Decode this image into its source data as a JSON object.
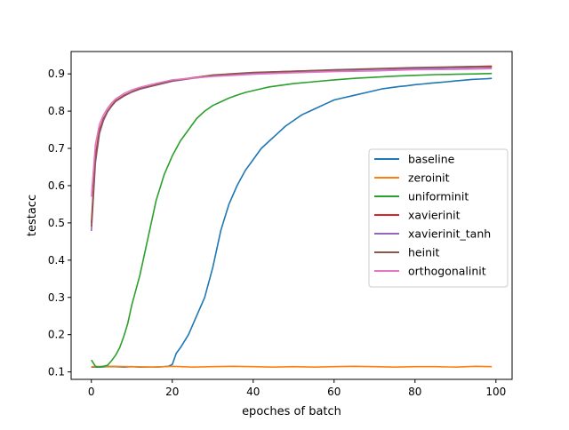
{
  "chart_data": {
    "type": "line",
    "title": "",
    "xlabel": "epoches of batch",
    "ylabel": "testacc",
    "xlim": [
      -5,
      104
    ],
    "ylim": [
      0.08,
      0.96
    ],
    "xticks": [
      0,
      20,
      40,
      60,
      80,
      100
    ],
    "yticks": [
      0.1,
      0.2,
      0.3,
      0.4,
      0.5,
      0.6,
      0.7,
      0.8,
      0.9
    ],
    "grid": false,
    "legend_position": "center-right",
    "series": [
      {
        "name": "baseline",
        "color": "#1f77b4",
        "x": [
          0,
          2,
          4,
          6,
          8,
          10,
          12,
          14,
          16,
          18,
          19,
          20,
          21,
          22,
          24,
          26,
          28,
          30,
          32,
          34,
          36,
          38,
          40,
          42,
          44,
          46,
          48,
          50,
          52,
          54,
          56,
          58,
          60,
          62,
          64,
          66,
          68,
          70,
          72,
          74,
          76,
          78,
          80,
          82,
          84,
          86,
          88,
          90,
          92,
          94,
          96,
          98,
          99
        ],
        "y": [
          0.113,
          0.113,
          0.114,
          0.114,
          0.113,
          0.114,
          0.113,
          0.113,
          0.113,
          0.114,
          0.115,
          0.12,
          0.15,
          0.165,
          0.2,
          0.25,
          0.3,
          0.38,
          0.48,
          0.55,
          0.6,
          0.64,
          0.67,
          0.7,
          0.72,
          0.74,
          0.76,
          0.775,
          0.79,
          0.8,
          0.81,
          0.82,
          0.83,
          0.835,
          0.84,
          0.845,
          0.85,
          0.855,
          0.86,
          0.863,
          0.866,
          0.868,
          0.871,
          0.873,
          0.875,
          0.877,
          0.879,
          0.881,
          0.883,
          0.885,
          0.886,
          0.887,
          0.888
        ]
      },
      {
        "name": "zeroinit",
        "color": "#ff7f0e",
        "x": [
          0,
          5,
          10,
          15,
          20,
          25,
          30,
          35,
          40,
          45,
          50,
          55,
          60,
          65,
          70,
          75,
          80,
          85,
          90,
          95,
          99
        ],
        "y": [
          0.114,
          0.115,
          0.114,
          0.113,
          0.115,
          0.113,
          0.114,
          0.115,
          0.114,
          0.113,
          0.114,
          0.113,
          0.114,
          0.115,
          0.114,
          0.113,
          0.114,
          0.114,
          0.113,
          0.115,
          0.114
        ]
      },
      {
        "name": "uniforminit",
        "color": "#2ca02c",
        "x": [
          0,
          1,
          2,
          3,
          4,
          5,
          6,
          7,
          8,
          9,
          10,
          12,
          14,
          16,
          18,
          20,
          22,
          24,
          26,
          28,
          30,
          32,
          34,
          36,
          38,
          40,
          42,
          44,
          46,
          48,
          50,
          55,
          60,
          65,
          70,
          75,
          80,
          85,
          90,
          95,
          99
        ],
        "y": [
          0.132,
          0.115,
          0.113,
          0.115,
          0.118,
          0.13,
          0.145,
          0.165,
          0.195,
          0.23,
          0.28,
          0.36,
          0.46,
          0.56,
          0.63,
          0.68,
          0.72,
          0.75,
          0.78,
          0.8,
          0.815,
          0.825,
          0.835,
          0.843,
          0.85,
          0.855,
          0.86,
          0.865,
          0.868,
          0.871,
          0.874,
          0.879,
          0.884,
          0.888,
          0.891,
          0.894,
          0.896,
          0.898,
          0.899,
          0.9,
          0.901
        ]
      },
      {
        "name": "xavierinit",
        "color": "#d62728",
        "x": [
          0,
          1,
          2,
          3,
          4,
          5,
          6,
          8,
          10,
          12,
          15,
          20,
          25,
          30,
          40,
          50,
          60,
          70,
          80,
          90,
          95,
          99
        ],
        "y": [
          0.5,
          0.68,
          0.75,
          0.78,
          0.8,
          0.815,
          0.828,
          0.842,
          0.852,
          0.86,
          0.868,
          0.882,
          0.89,
          0.896,
          0.903,
          0.907,
          0.91,
          0.913,
          0.916,
          0.918,
          0.92,
          0.921
        ]
      },
      {
        "name": "xavierinit_tanh",
        "color": "#9467bd",
        "x": [
          0,
          1,
          2,
          3,
          4,
          5,
          6,
          8,
          10,
          12,
          15,
          20,
          25,
          30,
          40,
          50,
          60,
          70,
          80,
          90,
          95,
          99
        ],
        "y": [
          0.478,
          0.66,
          0.74,
          0.775,
          0.798,
          0.813,
          0.826,
          0.84,
          0.851,
          0.859,
          0.867,
          0.88,
          0.888,
          0.894,
          0.901,
          0.906,
          0.909,
          0.912,
          0.914,
          0.916,
          0.917,
          0.918
        ]
      },
      {
        "name": "heinit",
        "color": "#8c564b",
        "x": [
          0,
          1,
          2,
          3,
          4,
          5,
          6,
          8,
          10,
          12,
          15,
          20,
          25,
          30,
          40,
          50,
          60,
          70,
          80,
          90,
          95,
          99
        ],
        "y": [
          0.49,
          0.67,
          0.745,
          0.778,
          0.8,
          0.814,
          0.827,
          0.841,
          0.852,
          0.86,
          0.868,
          0.881,
          0.889,
          0.897,
          0.904,
          0.907,
          0.911,
          0.914,
          0.917,
          0.919,
          0.92,
          0.919
        ]
      },
      {
        "name": "orthogonalinit",
        "color": "#e377c2",
        "x": [
          0,
          1,
          2,
          3,
          4,
          5,
          6,
          8,
          10,
          12,
          15,
          20,
          25,
          30,
          40,
          50,
          60,
          70,
          80,
          90,
          95,
          99
        ],
        "y": [
          0.57,
          0.71,
          0.765,
          0.79,
          0.808,
          0.822,
          0.833,
          0.847,
          0.857,
          0.864,
          0.872,
          0.884,
          0.889,
          0.893,
          0.899,
          0.903,
          0.906,
          0.908,
          0.911,
          0.912,
          0.913,
          0.914
        ]
      }
    ]
  }
}
